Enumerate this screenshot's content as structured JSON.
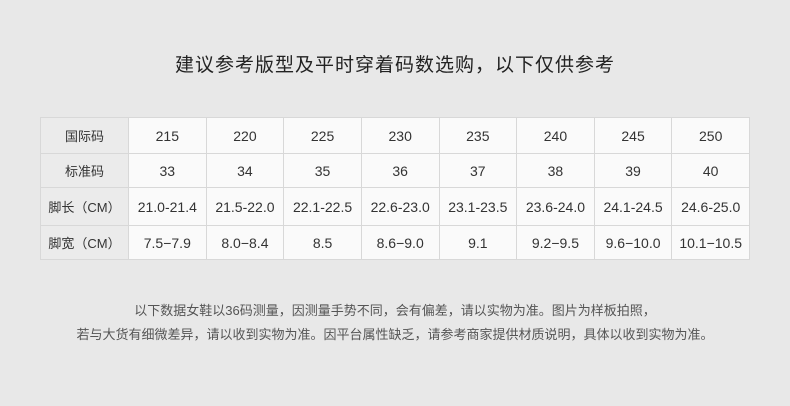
{
  "title": "建议参考版型及平时穿着码数选购，以下仅供参考",
  "table": {
    "rows": [
      {
        "label": "国际码",
        "values": [
          "215",
          "220",
          "225",
          "230",
          "235",
          "240",
          "245",
          "250"
        ]
      },
      {
        "label": "标准码",
        "values": [
          "33",
          "34",
          "35",
          "36",
          "37",
          "38",
          "39",
          "40"
        ]
      },
      {
        "label": "脚长（CM）",
        "values": [
          "21.0-21.4",
          "21.5-22.0",
          "22.1-22.5",
          "22.6-23.0",
          "23.1-23.5",
          "23.6-24.0",
          "24.1-24.5",
          "24.6-25.0"
        ]
      },
      {
        "label": "脚宽（CM）",
        "values": [
          "7.5−7.9",
          "8.0−8.4",
          "8.5",
          "8.6−9.0",
          "9.1",
          "9.2−9.5",
          "9.6−10.0",
          "10.1−10.5"
        ]
      }
    ]
  },
  "notes": [
    "以下数据女鞋以36码测量，因测量手势不同，会有偏差，请以实物为准。图片为样板拍照，",
    "若与大货有细微差异，请以收到实物为准。因平台属性缺乏，请参考商家提供材质说明，具体以收到实物为准。"
  ]
}
